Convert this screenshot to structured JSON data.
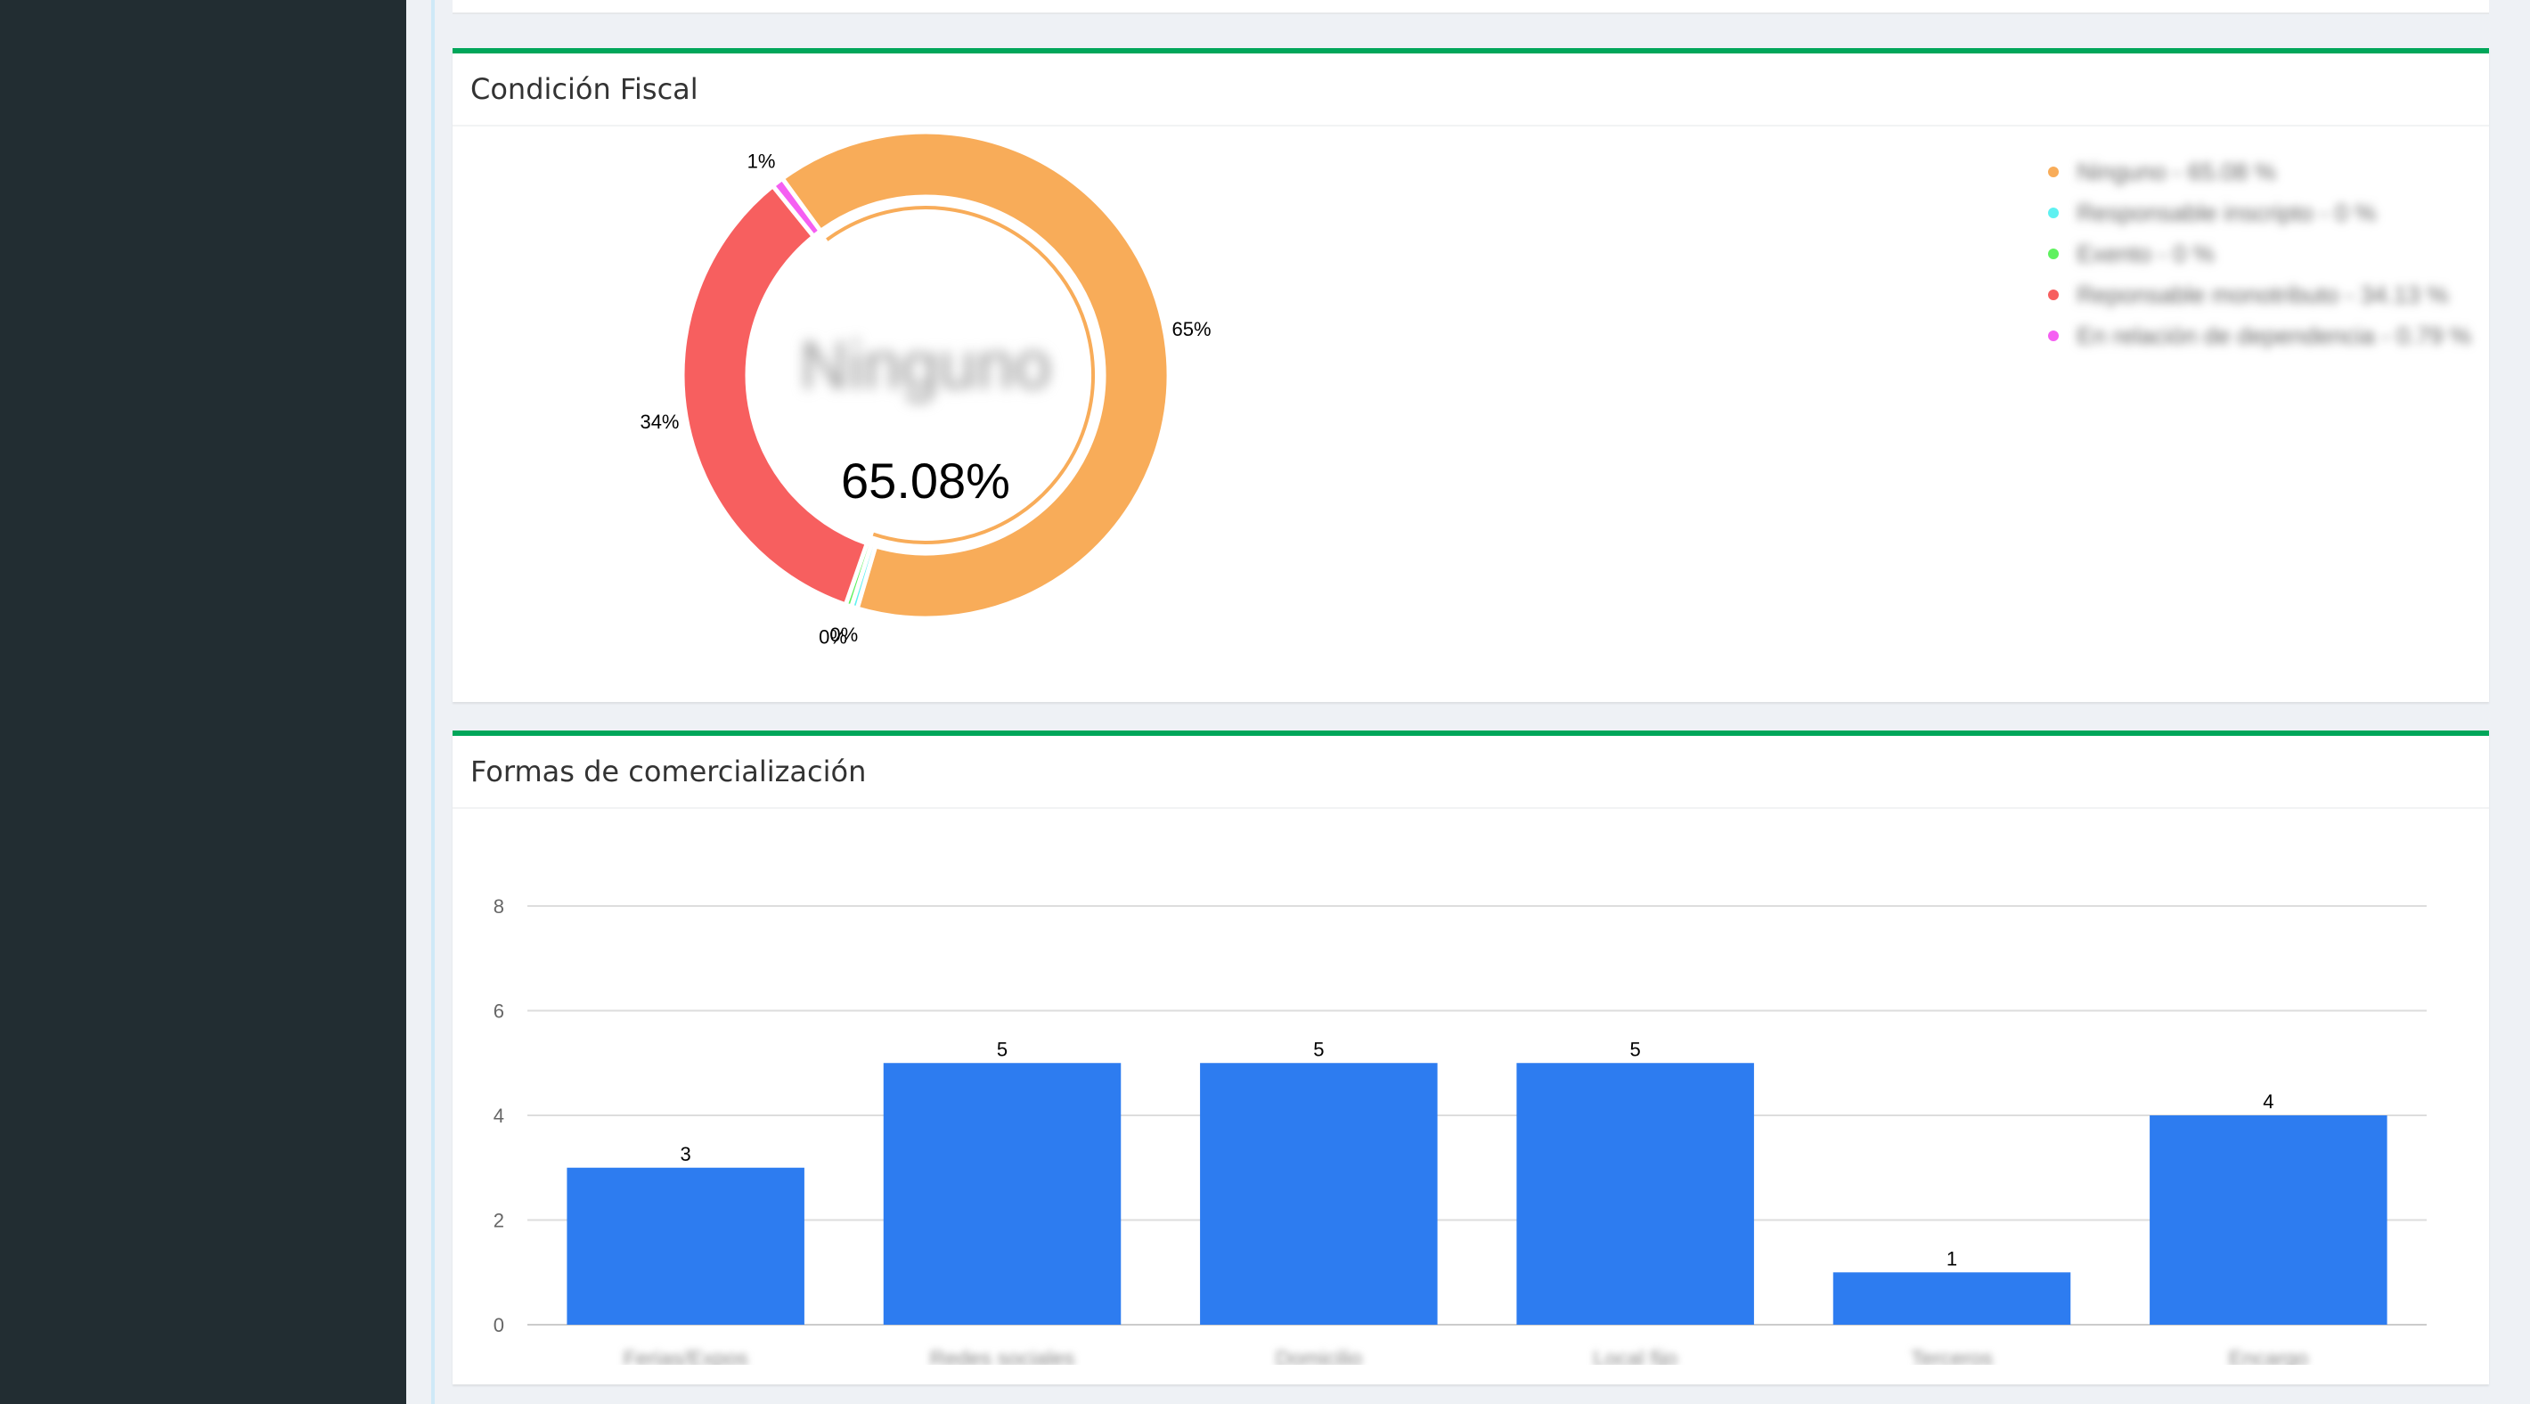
{
  "condicion_fiscal": {
    "title": "Condición Fiscal",
    "center_label": "Ninguno",
    "center_value": "65.08%",
    "legend": [
      {
        "label": "Ninguno - 65.08 %",
        "color": "#f8ac59"
      },
      {
        "label": "Responsable inscripto - 0 %",
        "color": "#5ff1f1"
      },
      {
        "label": "Exento - 0 %",
        "color": "#5ff15f"
      },
      {
        "label": "Reponsable monotributo - 34.13 %",
        "color": "#f75f5f"
      },
      {
        "label": "En relación de dependencia - 0.79 %",
        "color": "#f55ff2"
      }
    ],
    "chart_data": {
      "type": "pie",
      "labels": [
        "Ninguno",
        "Responsable inscripto",
        "Exento",
        "Reponsable monotributo",
        "En relación de dependencia"
      ],
      "values": [
        65.08,
        0,
        0,
        34.13,
        0.79
      ],
      "colors": [
        "#f8ac59",
        "#5ff1f1",
        "#5ff15f",
        "#f75f5f",
        "#f55ff2"
      ],
      "data_labels": [
        "65%",
        "0%",
        "0%",
        "34%",
        "1%"
      ],
      "legend_position": "top-right"
    }
  },
  "formas_comercializacion": {
    "title": "Formas de comercialización",
    "chart_data": {
      "type": "bar",
      "categories": [
        "Ferias/Expos",
        "Redes sociales",
        "Domicilio",
        "Local fijo",
        "Terceros",
        "Encargo"
      ],
      "values": [
        3,
        5,
        5,
        5,
        1,
        4
      ],
      "ylim": [
        0,
        8
      ],
      "yticks": [
        "0",
        "2",
        "4",
        "6",
        "8"
      ],
      "grid": true,
      "bar_color": "#2d7cf0"
    }
  }
}
